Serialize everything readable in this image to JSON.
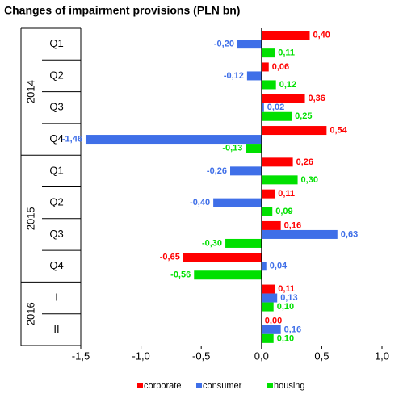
{
  "chart_data": {
    "type": "bar",
    "orientation": "horizontal",
    "title": "Changes of impairment provisions (PLN bn)",
    "groups": [
      {
        "name": "2014",
        "categories": [
          "Q1",
          "Q2",
          "Q3",
          "Q4"
        ]
      },
      {
        "name": "2015",
        "categories": [
          "Q1",
          "Q2",
          "Q3",
          "Q4"
        ]
      },
      {
        "name": "2016",
        "categories": [
          "I",
          "II"
        ]
      }
    ],
    "series": [
      {
        "name": "corporate",
        "color": "#ff0000",
        "values": [
          0.4,
          0.06,
          0.36,
          0.54,
          0.26,
          0.11,
          0.16,
          -0.65,
          0.11,
          0.0
        ],
        "value_labels": [
          "0,40",
          "0,06",
          "0,36",
          "0,54",
          "0,26",
          "0,11",
          "0,16",
          "-0,65",
          "0,11",
          "0,00"
        ]
      },
      {
        "name": "consumer",
        "color": "#3f6fe8",
        "values": [
          -0.2,
          -0.12,
          0.02,
          -1.46,
          -0.26,
          -0.4,
          0.63,
          0.04,
          0.13,
          0.16
        ],
        "value_labels": [
          "-0,20",
          "-0,12",
          "0,02",
          "-1,46",
          "-0,26",
          "-0,40",
          "0,63",
          "0,04",
          "0,13",
          "0,16"
        ]
      },
      {
        "name": "housing",
        "color": "#00e000",
        "values": [
          0.11,
          0.12,
          0.25,
          -0.13,
          0.3,
          0.09,
          -0.3,
          -0.56,
          0.1,
          0.1
        ],
        "value_labels": [
          "0,11",
          "0,12",
          "0,25",
          "-0,13",
          "0,30",
          "0,09",
          "-0,30",
          "-0,56",
          "0,10",
          "0,10"
        ]
      }
    ],
    "xlim": [
      -1.5,
      1.0
    ],
    "xticks": [
      {
        "value": -1.5,
        "label": "-1,5"
      },
      {
        "value": -1.0,
        "label": "-1,0"
      },
      {
        "value": -0.5,
        "label": "-0,5"
      },
      {
        "value": 0.0,
        "label": "0,0"
      },
      {
        "value": 0.5,
        "label": "0,5"
      },
      {
        "value": 1.0,
        "label": "1,0"
      }
    ],
    "legend": "bottom"
  }
}
